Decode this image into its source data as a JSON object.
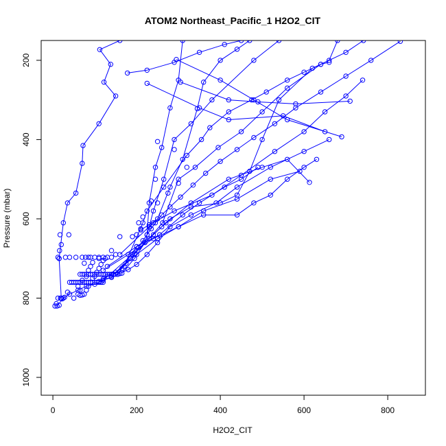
{
  "chart_data": {
    "type": "line",
    "title": "ATOM2 Northeast_Pacific_1 H2O2_CIT",
    "xlabel": "H2O2_CIT",
    "ylabel": "Pressure (mbar)",
    "xlim": [
      -28,
      890
    ],
    "ylim": [
      1045,
      150
    ],
    "x_ticks": [
      0,
      200,
      400,
      600,
      800
    ],
    "y_ticks": [
      200,
      400,
      600,
      800,
      1000
    ],
    "y_reversed": true,
    "grid": false,
    "legend": "none",
    "color": "#0000FF",
    "marker": "open-circle",
    "series": [
      {
        "values": [
          [
            110,
            758
          ],
          [
            120,
            752
          ],
          [
            130,
            745
          ],
          [
            140,
            740
          ],
          [
            150,
            735
          ],
          [
            165,
            725
          ],
          [
            175,
            712
          ],
          [
            185,
            700
          ],
          [
            195,
            688
          ],
          [
            205,
            672
          ],
          [
            215,
            655
          ],
          [
            225,
            640
          ],
          [
            235,
            625
          ],
          [
            245,
            610
          ],
          [
            260,
            590
          ],
          [
            280,
            570
          ],
          [
            305,
            545
          ],
          [
            335,
            515
          ],
          [
            365,
            485
          ],
          [
            400,
            455
          ],
          [
            440,
            425
          ],
          [
            480,
            395
          ],
          [
            530,
            360
          ],
          [
            580,
            320
          ],
          [
            640,
            280
          ],
          [
            700,
            240
          ],
          [
            760,
            200
          ],
          [
            830,
            152
          ]
        ]
      },
      {
        "values": [
          [
            165,
            737
          ],
          [
            195,
            700
          ],
          [
            220,
            660
          ],
          [
            230,
            620
          ],
          [
            240,
            580
          ],
          [
            265,
            500
          ],
          [
            290,
            400
          ],
          [
            330,
            360
          ],
          [
            380,
            300
          ],
          [
            480,
            200
          ],
          [
            540,
            150
          ]
        ]
      },
      {
        "values": [
          [
            155,
            740
          ],
          [
            200,
            670
          ],
          [
            240,
            640
          ],
          [
            280,
            600
          ],
          [
            330,
            570
          ],
          [
            400,
            560
          ],
          [
            440,
            540
          ],
          [
            470,
            480
          ],
          [
            500,
            400
          ],
          [
            540,
            300
          ],
          [
            620,
            220
          ],
          [
            660,
            200
          ],
          [
            680,
            150
          ]
        ]
      },
      {
        "values": [
          [
            145,
            740
          ],
          [
            185,
            700
          ],
          [
            230,
            650
          ],
          [
            262,
            610
          ],
          [
            300,
            500
          ],
          [
            340,
            470
          ],
          [
            395,
            420
          ],
          [
            450,
            380
          ],
          [
            500,
            330
          ],
          [
            560,
            270
          ],
          [
            640,
            210
          ],
          [
            700,
            180
          ],
          [
            742,
            150
          ]
        ]
      },
      {
        "values": [
          [
            178,
            232
          ],
          [
            225,
            225
          ],
          [
            290,
            205
          ],
          [
            350,
            180
          ],
          [
            410,
            160
          ],
          [
            450,
            150
          ]
        ]
      },
      {
        "values": [
          [
            225,
            258
          ],
          [
            350,
            320
          ],
          [
            420,
            350
          ],
          [
            550,
            340
          ],
          [
            650,
            380
          ]
        ]
      },
      {
        "values": [
          [
            295,
            198
          ],
          [
            400,
            250
          ],
          [
            480,
            300
          ],
          [
            560,
            350
          ],
          [
            690,
            393
          ]
        ]
      },
      {
        "values": [
          [
            305,
            255
          ],
          [
            420,
            300
          ],
          [
            490,
            305
          ],
          [
            580,
            310
          ],
          [
            710,
            303
          ]
        ]
      },
      {
        "values": [
          [
            160,
            690
          ],
          [
            240,
            610
          ],
          [
            290,
            580
          ],
          [
            380,
            540
          ],
          [
            450,
            490
          ],
          [
            530,
            430
          ],
          [
            600,
            380
          ],
          [
            650,
            330
          ],
          [
            700,
            290
          ],
          [
            740,
            250
          ]
        ]
      },
      {
        "values": [
          [
            115,
            760
          ],
          [
            190,
            690
          ],
          [
            260,
            620
          ],
          [
            330,
            560
          ],
          [
            420,
            500
          ],
          [
            500,
            470
          ],
          [
            560,
            450
          ],
          [
            613,
            508
          ]
        ]
      },
      {
        "values": [
          [
            120,
            730
          ],
          [
            180,
            690
          ],
          [
            240,
            650
          ],
          [
            300,
            620
          ],
          [
            360,
            590
          ],
          [
            440,
            590
          ],
          [
            480,
            560
          ],
          [
            520,
            540
          ],
          [
            560,
            500
          ],
          [
            600,
            470
          ],
          [
            630,
            450
          ]
        ]
      },
      {
        "values": [
          [
            130,
            720
          ],
          [
            200,
            670
          ],
          [
            255,
            640
          ],
          [
            310,
            590
          ],
          [
            350,
            560
          ],
          [
            410,
            520
          ],
          [
            450,
            500
          ],
          [
            490,
            470
          ]
        ]
      },
      {
        "values": [
          [
            140,
            745
          ],
          [
            200,
            690
          ],
          [
            250,
            650
          ],
          [
            300,
            620
          ],
          [
            360,
            580
          ],
          [
            440,
            550
          ],
          [
            520,
            500
          ],
          [
            590,
            480
          ]
        ]
      },
      {
        "values": [
          [
            225,
            640
          ],
          [
            230,
            560
          ],
          [
            245,
            470
          ],
          [
            260,
            420
          ],
          [
            280,
            320
          ],
          [
            300,
            250
          ],
          [
            310,
            150
          ]
        ]
      },
      {
        "values": [
          [
            20,
            800
          ],
          [
            15,
            700
          ],
          [
            25,
            610
          ],
          [
            35,
            560
          ],
          [
            55,
            535
          ],
          [
            70,
            460
          ],
          [
            72,
            415
          ],
          [
            110,
            360
          ],
          [
            150,
            290
          ],
          [
            122,
            255
          ],
          [
            138,
            210
          ],
          [
            112,
            173
          ],
          [
            160,
            150
          ]
        ]
      },
      {
        "values": [
          [
            210,
            628
          ],
          [
            230,
            615
          ],
          [
            250,
            600
          ],
          [
            280,
            520
          ],
          [
            310,
            450
          ],
          [
            345,
            322
          ],
          [
            360,
            255
          ],
          [
            400,
            200
          ],
          [
            440,
            172
          ],
          [
            470,
            150
          ]
        ]
      },
      {
        "values": [
          [
            170,
            720
          ],
          [
            215,
            610
          ],
          [
            225,
            580
          ],
          [
            265,
            520
          ],
          [
            320,
            440
          ],
          [
            355,
            400
          ],
          [
            375,
            370
          ],
          [
            420,
            330
          ],
          [
            475,
            300
          ],
          [
            510,
            280
          ],
          [
            560,
            250
          ],
          [
            600,
            230
          ],
          [
            640,
            210
          ],
          [
            660,
            205
          ]
        ]
      },
      {
        "values": [
          [
            10,
            820
          ],
          [
            25,
            800
          ],
          [
            40,
            790
          ],
          [
            60,
            780
          ],
          [
            80,
            770
          ],
          [
            100,
            765
          ],
          [
            120,
            755
          ],
          [
            140,
            748
          ],
          [
            160,
            738
          ],
          [
            180,
            728
          ],
          [
            200,
            715
          ],
          [
            225,
            690
          ],
          [
            250,
            660
          ],
          [
            280,
            620
          ],
          [
            330,
            590
          ],
          [
            390,
            560
          ],
          [
            440,
            520
          ],
          [
            520,
            470
          ],
          [
            600,
            430
          ],
          [
            660,
            400
          ]
        ]
      }
    ],
    "scatter_points": [
      [
        5,
        820
      ],
      [
        8,
        814
      ],
      [
        12,
        800
      ],
      [
        18,
        800
      ],
      [
        22,
        802
      ],
      [
        15,
        818
      ],
      [
        28,
        798
      ],
      [
        35,
        785
      ],
      [
        12,
        697
      ],
      [
        15,
        700
      ],
      [
        16,
        680
      ],
      [
        20,
        665
      ],
      [
        17,
        640
      ],
      [
        38,
        640
      ],
      [
        30,
        697
      ],
      [
        40,
        697
      ],
      [
        55,
        697
      ],
      [
        70,
        697
      ],
      [
        78,
        697
      ],
      [
        85,
        697
      ],
      [
        90,
        697
      ],
      [
        100,
        697
      ],
      [
        110,
        697
      ],
      [
        120,
        697
      ],
      [
        130,
        697
      ],
      [
        140,
        697
      ],
      [
        40,
        760
      ],
      [
        45,
        760
      ],
      [
        50,
        760
      ],
      [
        55,
        760
      ],
      [
        60,
        760
      ],
      [
        65,
        760
      ],
      [
        70,
        760
      ],
      [
        75,
        760
      ],
      [
        80,
        760
      ],
      [
        85,
        760
      ],
      [
        90,
        760
      ],
      [
        95,
        760
      ],
      [
        100,
        760
      ],
      [
        105,
        760
      ],
      [
        110,
        760
      ],
      [
        115,
        760
      ],
      [
        120,
        760
      ],
      [
        65,
        740
      ],
      [
        70,
        740
      ],
      [
        75,
        740
      ],
      [
        80,
        740
      ],
      [
        85,
        740
      ],
      [
        90,
        740
      ],
      [
        95,
        740
      ],
      [
        100,
        740
      ],
      [
        105,
        740
      ],
      [
        110,
        740
      ],
      [
        115,
        740
      ],
      [
        120,
        740
      ],
      [
        125,
        740
      ],
      [
        130,
        740
      ],
      [
        135,
        740
      ],
      [
        140,
        740
      ],
      [
        145,
        740
      ],
      [
        150,
        740
      ],
      [
        155,
        740
      ],
      [
        75,
        790
      ],
      [
        70,
        792
      ],
      [
        65,
        793
      ],
      [
        80,
        780
      ],
      [
        85,
        770
      ],
      [
        90,
        760
      ],
      [
        95,
        750
      ],
      [
        100,
        745
      ],
      [
        105,
        735
      ],
      [
        110,
        725
      ],
      [
        115,
        715
      ],
      [
        120,
        705
      ],
      [
        125,
        700
      ],
      [
        50,
        800
      ],
      [
        60,
        790
      ],
      [
        65,
        780
      ],
      [
        60,
        770
      ],
      [
        70,
        755
      ],
      [
        80,
        745
      ],
      [
        85,
        730
      ],
      [
        90,
        720
      ],
      [
        95,
        710
      ],
      [
        75,
        712
      ],
      [
        110,
        700
      ],
      [
        140,
        680
      ],
      [
        150,
        690
      ],
      [
        160,
        645
      ],
      [
        190,
        645
      ],
      [
        200,
        640
      ],
      [
        210,
        625
      ],
      [
        205,
        610
      ],
      [
        215,
        595
      ],
      [
        250,
        405
      ],
      [
        245,
        500
      ],
      [
        235,
        555
      ],
      [
        250,
        560
      ],
      [
        270,
        610
      ],
      [
        275,
        535
      ],
      [
        300,
        510
      ],
      [
        320,
        470
      ],
      [
        290,
        425
      ]
    ]
  }
}
